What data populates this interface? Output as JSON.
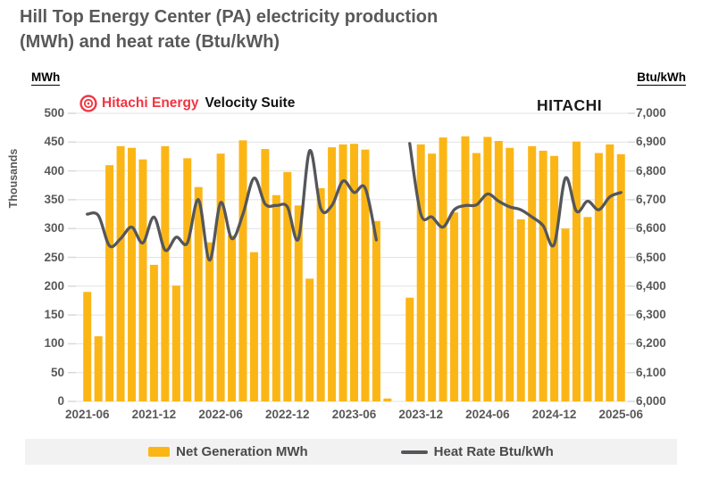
{
  "title": {
    "line1": "Hill Top Energy Center (PA) electricity production",
    "line2": "(MWh) and heat rate (Btu/kWh)"
  },
  "axis_headers": {
    "left": "MWh",
    "right": "Btu/kWh",
    "left_units": "Thousands"
  },
  "branding": {
    "logo_icon": "hitachi-energy-ring-logo",
    "logo_text": "Hitachi Energy",
    "logo_color": "#F23440",
    "product_text": "Velocity Suite",
    "wordmark": "HITACHI"
  },
  "legend": {
    "items": [
      {
        "label": "Net Generation MWh",
        "swatch": "bar",
        "color": "#FBB616"
      },
      {
        "label": "Heat Rate Btu/kWh",
        "swatch": "line",
        "color": "#54565A"
      }
    ]
  },
  "colors": {
    "bar": "#FBB616",
    "line": "#54565A",
    "grid": "#E2E2E2",
    "tick_dash": "#D9D9D9",
    "text": "#595959",
    "legend_bg": "#F2F2F2"
  },
  "chart_data": {
    "type": "bar",
    "title": "Hill Top Energy Center (PA) electricity production (MWh) and heat rate (Btu/kWh)",
    "grid": true,
    "legend_position": "bottom",
    "categories": [
      "2021-06",
      "2021-07",
      "2021-08",
      "2021-09",
      "2021-10",
      "2021-11",
      "2021-12",
      "2022-01",
      "2022-02",
      "2022-03",
      "2022-04",
      "2022-05",
      "2022-06",
      "2022-07",
      "2022-08",
      "2022-09",
      "2022-10",
      "2022-11",
      "2022-12",
      "2023-01",
      "2023-02",
      "2023-03",
      "2023-04",
      "2023-05",
      "2023-06",
      "2023-07",
      "2023-08",
      "2023-09",
      "2023-10",
      "2023-11",
      "2023-12",
      "2024-01",
      "2024-02",
      "2024-03",
      "2024-04",
      "2024-05",
      "2024-06",
      "2024-07",
      "2024-08",
      "2024-09",
      "2024-10",
      "2024-11",
      "2024-12",
      "2025-01",
      "2025-02",
      "2025-03",
      "2025-04",
      "2025-05",
      "2025-06"
    ],
    "series": [
      {
        "name": "Net Generation MWh",
        "type": "bar",
        "axis": "left",
        "units": "thousand MWh",
        "color": "#FBB616",
        "values": [
          190,
          113,
          410,
          443,
          440,
          420,
          237,
          443,
          201,
          422,
          372,
          276,
          430,
          288,
          453,
          259,
          438,
          358,
          398,
          340,
          213,
          370,
          441,
          446,
          447,
          437,
          313,
          5,
          0,
          180,
          446,
          430,
          458,
          328,
          460,
          431,
          459,
          452,
          440,
          316,
          443,
          435,
          426,
          300,
          451,
          320,
          431,
          446,
          429
        ]
      },
      {
        "name": "Heat Rate Btu/kWh",
        "type": "line",
        "axis": "right",
        "units": "Btu/kWh",
        "color": "#54565A",
        "values": [
          6650,
          6645,
          6540,
          6565,
          6605,
          6550,
          6640,
          6525,
          6570,
          6550,
          6700,
          6490,
          6690,
          6565,
          6650,
          6775,
          6685,
          6680,
          6675,
          6565,
          6870,
          6670,
          6680,
          6765,
          6725,
          6740,
          6560,
          null,
          null,
          6895,
          6650,
          6640,
          6605,
          6665,
          6680,
          6682,
          6720,
          6695,
          6675,
          6665,
          6640,
          6610,
          6545,
          6775,
          6660,
          6695,
          6665,
          6710,
          6725
        ]
      }
    ],
    "left_axis": {
      "label": "MWh",
      "units_note": "Thousands",
      "min": 0,
      "max": 500,
      "tick_step": 50,
      "tick_labels": [
        "0",
        "50",
        "100",
        "150",
        "200",
        "250",
        "300",
        "350",
        "400",
        "450",
        "500"
      ]
    },
    "right_axis": {
      "label": "Btu/kWh",
      "min": 6000,
      "max": 7000,
      "tick_step": 100,
      "tick_labels": [
        "6,000",
        "6,100",
        "6,200",
        "6,300",
        "6,400",
        "6,500",
        "6,600",
        "6,700",
        "6,800",
        "6,900",
        "7,000"
      ]
    },
    "x_axis": {
      "tick_labels": [
        "2021-06",
        "2021-12",
        "2022-06",
        "2022-12",
        "2023-06",
        "2023-12",
        "2024-06",
        "2024-12",
        "2025-06"
      ],
      "tick_every": 6
    }
  }
}
